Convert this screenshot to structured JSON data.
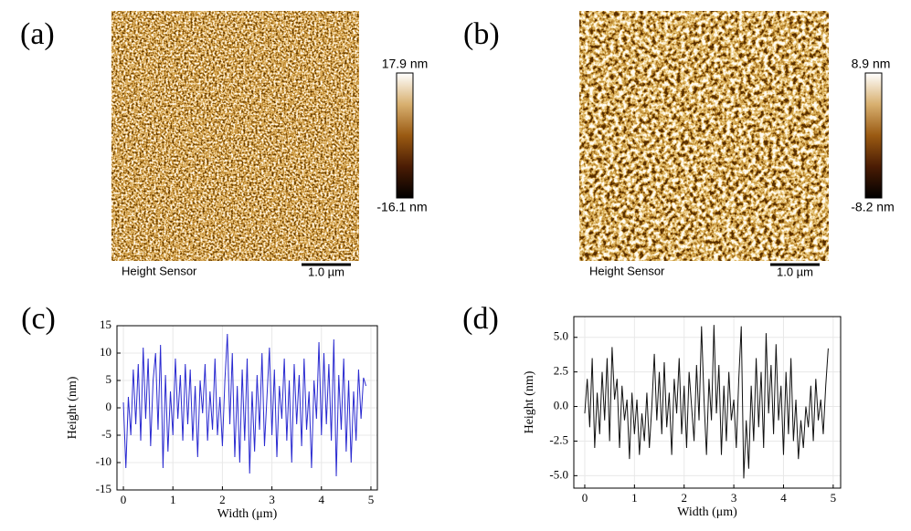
{
  "panels": [
    {
      "label": "(a)",
      "image_label": "Height Sensor",
      "scale_bar": "1.0 µm",
      "colorbar_max": "17.9 nm",
      "colorbar_min": "-16.1 nm"
    },
    {
      "label": "(b)",
      "image_label": "Height Sensor",
      "scale_bar": "1.0 µm",
      "colorbar_max": "8.9 nm",
      "colorbar_min": "-8.2 nm"
    }
  ],
  "chart_data": [
    {
      "type": "line",
      "label": "(c)",
      "xlabel": "Width (μm)",
      "ylabel": "Height (nm)",
      "color": "#2a2ad0",
      "grid": true,
      "xlim": [
        -0.13,
        5.13
      ],
      "xticks": [
        0,
        1,
        2,
        3,
        4,
        5
      ],
      "ylim": [
        -15,
        15
      ],
      "yticks": [
        -15,
        -10,
        -5,
        0,
        5,
        10,
        15
      ],
      "x": [
        0,
        0.05,
        0.1,
        0.15,
        0.2,
        0.25,
        0.3,
        0.35,
        0.4,
        0.45,
        0.5,
        0.55,
        0.6,
        0.65,
        0.7,
        0.75,
        0.8,
        0.85,
        0.9,
        0.95,
        1,
        1.05,
        1.1,
        1.15,
        1.2,
        1.25,
        1.3,
        1.35,
        1.4,
        1.45,
        1.5,
        1.55,
        1.6,
        1.65,
        1.7,
        1.75,
        1.8,
        1.85,
        1.9,
        1.95,
        2,
        2.05,
        2.1,
        2.15,
        2.2,
        2.25,
        2.3,
        2.35,
        2.4,
        2.45,
        2.5,
        2.55,
        2.6,
        2.65,
        2.7,
        2.75,
        2.8,
        2.85,
        2.9,
        2.95,
        3,
        3.05,
        3.1,
        3.15,
        3.2,
        3.25,
        3.3,
        3.35,
        3.4,
        3.45,
        3.5,
        3.55,
        3.6,
        3.65,
        3.7,
        3.75,
        3.8,
        3.85,
        3.9,
        3.95,
        4,
        4.05,
        4.1,
        4.15,
        4.2,
        4.25,
        4.3,
        4.35,
        4.4,
        4.45,
        4.5,
        4.55,
        4.6,
        4.65,
        4.7,
        4.75,
        4.8,
        4.85,
        4.9
      ],
      "values": [
        1,
        -11,
        2,
        -5,
        7,
        -3,
        8,
        -6,
        11,
        -2,
        9,
        -7,
        5,
        10,
        -4,
        11.5,
        -11,
        6,
        -8,
        3,
        -5,
        9,
        -2,
        6,
        -6,
        8,
        -3,
        7,
        -6,
        4,
        -9,
        5,
        -1,
        8,
        -6,
        3,
        -4,
        9,
        -5,
        2,
        -7,
        5,
        13.5,
        -3,
        10,
        -9,
        4,
        -10,
        7,
        -6,
        9,
        -12,
        3,
        -8,
        6,
        -4,
        10,
        -7,
        2,
        11,
        -5,
        7,
        -9,
        4,
        -2,
        9,
        -6,
        5,
        -10,
        8,
        -3,
        6,
        -7,
        9,
        -4,
        3,
        -11,
        5,
        -2,
        12,
        -5,
        10,
        -3,
        8,
        -6,
        12.5,
        -12.5,
        6,
        -4,
        9,
        -8,
        5,
        -10,
        3,
        -6,
        7,
        -2,
        5.5,
        4
      ]
    },
    {
      "type": "line",
      "label": "(d)",
      "xlabel": "Width (μm)",
      "ylabel": "Height (nm)",
      "color": "#111111",
      "grid": true,
      "xlim": [
        -0.22,
        5.15
      ],
      "xticks": [
        0,
        1,
        2,
        3,
        4,
        5
      ],
      "ylim": [
        -5.9,
        6.5
      ],
      "yticks": [
        {
          "value": -5,
          "label": "-5.0"
        },
        -2.5,
        {
          "value": 0,
          "label": "0.0"
        },
        2.5,
        {
          "value": 5,
          "label": "5.0"
        }
      ],
      "x": [
        0,
        0.05,
        0.1,
        0.15,
        0.2,
        0.25,
        0.3,
        0.35,
        0.4,
        0.45,
        0.5,
        0.55,
        0.6,
        0.65,
        0.7,
        0.75,
        0.8,
        0.85,
        0.9,
        0.95,
        1,
        1.05,
        1.1,
        1.15,
        1.2,
        1.25,
        1.3,
        1.35,
        1.4,
        1.45,
        1.5,
        1.55,
        1.6,
        1.65,
        1.7,
        1.75,
        1.8,
        1.85,
        1.9,
        1.95,
        2,
        2.05,
        2.1,
        2.15,
        2.2,
        2.25,
        2.3,
        2.35,
        2.4,
        2.45,
        2.5,
        2.55,
        2.6,
        2.65,
        2.7,
        2.75,
        2.8,
        2.85,
        2.9,
        2.95,
        3,
        3.05,
        3.1,
        3.15,
        3.2,
        3.25,
        3.3,
        3.35,
        3.4,
        3.45,
        3.5,
        3.55,
        3.6,
        3.65,
        3.7,
        3.75,
        3.8,
        3.85,
        3.9,
        3.95,
        4,
        4.05,
        4.1,
        4.15,
        4.2,
        4.25,
        4.3,
        4.35,
        4.4,
        4.45,
        4.5,
        4.55,
        4.6,
        4.65,
        4.7,
        4.75,
        4.8,
        4.85,
        4.9
      ],
      "values": [
        -0.5,
        2,
        -1.5,
        3.5,
        -3,
        1,
        -2,
        2.5,
        -1,
        3.5,
        -2.5,
        4.3,
        0.5,
        2,
        -3,
        1.5,
        -1,
        0.5,
        -3.8,
        1,
        -2,
        0.5,
        -3.5,
        -0.5,
        -2.5,
        1,
        -3,
        0,
        3.8,
        -1,
        2.5,
        -2,
        3.2,
        -1.5,
        1,
        -3.5,
        2,
        -0.5,
        3.5,
        -2,
        1.5,
        -3,
        2.5,
        0,
        -2.5,
        3,
        -1,
        5.8,
        0.5,
        -3.5,
        2,
        -1,
        5.9,
        -0.5,
        3,
        -3.5,
        1.5,
        -2.5,
        2.5,
        -1,
        0.5,
        -3,
        2,
        5.8,
        -5.2,
        -1,
        -4.5,
        1.5,
        -2.5,
        3.5,
        -1.5,
        2.5,
        -3,
        5.3,
        -0.5,
        3,
        -2,
        4.5,
        -1,
        1.5,
        -3.5,
        2.5,
        -2,
        3.5,
        -2.5,
        0.5,
        -3.8,
        -1,
        -3,
        0,
        -1.5,
        1.5,
        -2.5,
        2,
        -1,
        0.5,
        -2,
        1.5,
        4.2
      ]
    }
  ]
}
